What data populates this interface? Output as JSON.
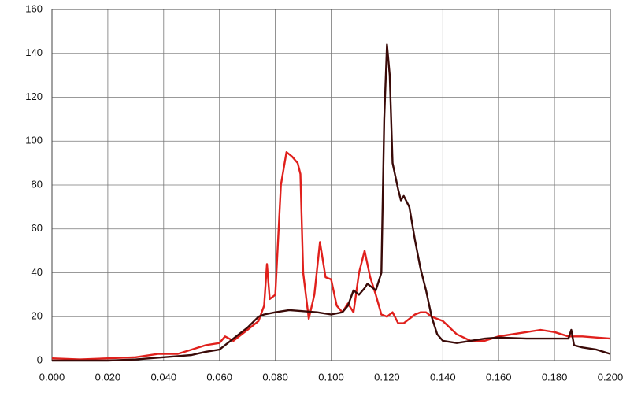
{
  "chart_data": {
    "type": "line",
    "xlim": [
      0,
      0.2
    ],
    "ylim": [
      0,
      160
    ],
    "xticks": [
      {
        "value": 0,
        "label": "0.000"
      },
      {
        "value": 0.02,
        "label": "0.020"
      },
      {
        "value": 0.04,
        "label": "0.040"
      },
      {
        "value": 0.06,
        "label": "0.060"
      },
      {
        "value": 0.08,
        "label": "0.080"
      },
      {
        "value": 0.1,
        "label": "0.100"
      },
      {
        "value": 0.12,
        "label": "0.120"
      },
      {
        "value": 0.14,
        "label": "0.140"
      },
      {
        "value": 0.16,
        "label": "0.160"
      },
      {
        "value": 0.18,
        "label": "0.180"
      },
      {
        "value": 0.2,
        "label": "0.200"
      }
    ],
    "yticks": [
      0,
      20,
      40,
      60,
      80,
      100,
      120,
      140,
      160
    ],
    "grid": true,
    "series": [
      {
        "color": "#e0201c",
        "x": [
          0,
          0.01,
          0.02,
          0.03,
          0.038,
          0.045,
          0.05,
          0.055,
          0.06,
          0.062,
          0.065,
          0.07,
          0.074,
          0.076,
          0.077,
          0.078,
          0.08,
          0.082,
          0.084,
          0.086,
          0.088,
          0.089,
          0.09,
          0.092,
          0.094,
          0.096,
          0.098,
          0.1,
          0.102,
          0.104,
          0.106,
          0.108,
          0.11,
          0.112,
          0.114,
          0.116,
          0.118,
          0.12,
          0.122,
          0.124,
          0.126,
          0.128,
          0.13,
          0.132,
          0.134,
          0.136,
          0.14,
          0.145,
          0.15,
          0.155,
          0.16,
          0.17,
          0.175,
          0.18,
          0.185,
          0.19,
          0.2
        ],
        "values": [
          1,
          0.5,
          1,
          1.5,
          3,
          3,
          5,
          7,
          8,
          11,
          9,
          14,
          18,
          25,
          44,
          28,
          30,
          80,
          95,
          93,
          90,
          85,
          40,
          19,
          30,
          54,
          38,
          37,
          25,
          22,
          26,
          22,
          40,
          50,
          38,
          30,
          21,
          20,
          22,
          17,
          17,
          19,
          21,
          22,
          22,
          20,
          18,
          12,
          9,
          9,
          11,
          13,
          14,
          13,
          11,
          11,
          10
        ]
      },
      {
        "color": "#3a0a08",
        "x": [
          0,
          0.01,
          0.02,
          0.03,
          0.04,
          0.045,
          0.05,
          0.055,
          0.06,
          0.065,
          0.07,
          0.074,
          0.076,
          0.08,
          0.085,
          0.09,
          0.095,
          0.1,
          0.104,
          0.106,
          0.108,
          0.11,
          0.112,
          0.113,
          0.116,
          0.118,
          0.119,
          0.12,
          0.121,
          0.122,
          0.124,
          0.125,
          0.126,
          0.128,
          0.13,
          0.132,
          0.134,
          0.136,
          0.138,
          0.14,
          0.145,
          0.15,
          0.155,
          0.16,
          0.17,
          0.18,
          0.185,
          0.186,
          0.187,
          0.19,
          0.195,
          0.2
        ],
        "values": [
          0,
          0,
          0,
          0.5,
          1.5,
          2,
          2.5,
          4,
          5,
          10,
          15,
          20,
          21,
          22,
          23,
          22.5,
          22,
          21,
          22,
          25,
          32,
          30,
          33,
          35,
          32,
          40,
          110,
          144,
          130,
          90,
          78,
          73,
          75,
          70,
          55,
          42,
          32,
          20,
          12,
          9,
          8,
          9,
          10,
          10.5,
          10,
          10,
          10,
          14,
          7,
          6,
          5,
          3
        ]
      }
    ]
  }
}
